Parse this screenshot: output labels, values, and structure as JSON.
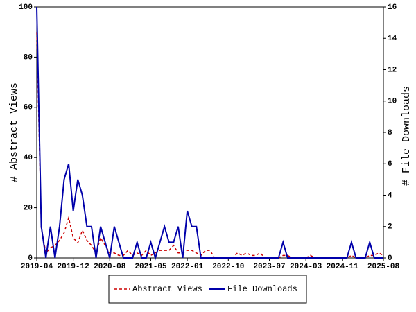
{
  "chart_data": {
    "type": "line",
    "y_label": "# Abstract Views",
    "y2_label": "# File Downloads",
    "x": [
      "2019-04",
      "2019-05",
      "2019-06",
      "2019-07",
      "2019-08",
      "2019-09",
      "2019-10",
      "2019-11",
      "2019-12",
      "2020-01",
      "2020-02",
      "2020-03",
      "2020-04",
      "2020-05",
      "2020-06",
      "2020-07",
      "2020-08",
      "2020-09",
      "2020-10",
      "2020-11",
      "2020-12",
      "2021-01",
      "2021-02",
      "2021-03",
      "2021-04",
      "2021-05",
      "2021-06",
      "2021-07",
      "2021-08",
      "2021-09",
      "2021-10",
      "2021-11",
      "2021-12",
      "2022-01",
      "2022-02",
      "2022-03",
      "2022-04",
      "2022-05",
      "2022-06",
      "2022-07",
      "2022-08",
      "2022-09",
      "2022-10",
      "2022-11",
      "2022-12",
      "2023-01",
      "2023-02",
      "2023-03",
      "2023-04",
      "2023-05",
      "2023-06",
      "2023-07",
      "2023-08",
      "2023-09",
      "2023-10",
      "2023-11",
      "2023-12",
      "2024-01",
      "2024-02",
      "2024-03",
      "2024-04",
      "2024-05",
      "2024-06",
      "2024-07",
      "2024-08",
      "2024-09",
      "2024-10",
      "2024-11",
      "2024-12",
      "2025-01",
      "2025-02",
      "2025-03",
      "2025-04",
      "2025-05",
      "2025-06",
      "2025-07",
      "2025-08"
    ],
    "xlim": [
      "2019-04",
      "2025-08"
    ],
    "xticks": [
      "2019-04",
      "2019-12",
      "2020-08",
      "2021-05",
      "2022-01",
      "2022-10",
      "2023-07",
      "2024-03",
      "2024-11",
      "2025-08"
    ],
    "ylim": [
      0,
      100
    ],
    "yticks": [
      0,
      20,
      40,
      60,
      80,
      100
    ],
    "y2lim": [
      0,
      16
    ],
    "y2ticks": [
      0,
      2,
      4,
      6,
      8,
      10,
      12,
      14,
      16
    ],
    "series": [
      {
        "name": "Abstract Views",
        "color": "#cc0000",
        "dashed": true,
        "values": [
          90,
          12,
          2,
          4,
          5,
          7,
          10,
          16,
          8,
          6,
          11,
          7,
          5,
          2,
          8,
          5,
          2,
          2,
          1,
          1,
          3,
          1,
          2,
          1,
          3,
          1,
          2,
          3,
          3,
          3,
          5,
          2,
          2,
          3,
          3,
          2,
          1,
          3,
          3,
          0,
          0,
          0,
          0,
          0,
          2,
          1,
          2,
          1,
          1,
          2,
          0,
          0,
          0,
          0,
          1,
          1,
          0,
          0,
          0,
          0,
          1,
          0,
          0,
          0,
          0,
          0,
          0,
          0,
          0,
          1,
          0,
          0,
          0,
          1,
          1,
          2,
          1
        ]
      },
      {
        "name": "File Downloads",
        "color": "#0000aa",
        "axis": "y2",
        "values": [
          16,
          2,
          0,
          2,
          0,
          2,
          5,
          6,
          3,
          5,
          4,
          2,
          2,
          0,
          2,
          1,
          0,
          2,
          1,
          0,
          0,
          0,
          1,
          0,
          0,
          1,
          0,
          1,
          2,
          1,
          1,
          2,
          0,
          3,
          2,
          2,
          0,
          0,
          0,
          0,
          0,
          0,
          0,
          0,
          0,
          0,
          0,
          0,
          0,
          0,
          0,
          0,
          0,
          0,
          1,
          0,
          0,
          0,
          0,
          0,
          0,
          0,
          0,
          0,
          0,
          0,
          0,
          0,
          0,
          1,
          0,
          0,
          0,
          1,
          0,
          0,
          0
        ]
      }
    ],
    "legend": "bottom"
  }
}
